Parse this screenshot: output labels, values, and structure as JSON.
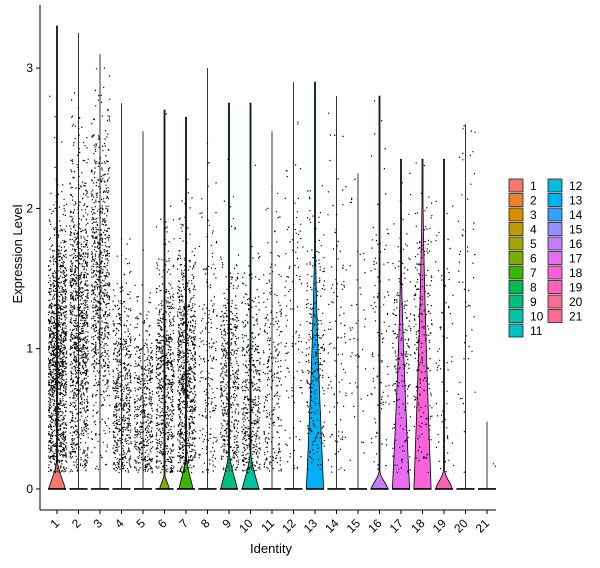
{
  "chart_data": {
    "type": "violin",
    "xlabel": "Identity",
    "ylabel": "Expression Level",
    "ylim": [
      -0.15,
      3.45
    ],
    "yticks": [
      0,
      1,
      2,
      3
    ],
    "grid": false,
    "legend_position": "right",
    "points_overlay": true,
    "categories": [
      "1",
      "2",
      "3",
      "4",
      "5",
      "6",
      "7",
      "8",
      "9",
      "10",
      "11",
      "12",
      "13",
      "14",
      "15",
      "16",
      "17",
      "18",
      "19",
      "20",
      "21"
    ],
    "colors": [
      "#F8766D",
      "#EA8331",
      "#D89000",
      "#C09B00",
      "#A3A500",
      "#7CAE00",
      "#39B600",
      "#00BB4E",
      "#00BF7D",
      "#00C1A3",
      "#00BFC4",
      "#00BAE0",
      "#00B0F6",
      "#35A2FF",
      "#9590FF",
      "#C77CFF",
      "#E76BF3",
      "#FA62DB",
      "#FF62BC",
      "#FF6C91",
      "#FF6C91"
    ],
    "series": [
      {
        "name": "1",
        "max": 3.3,
        "point_mean": 0.9,
        "point_sd": 0.5,
        "point_count": 1300,
        "violin_peak": 0.19,
        "violin_halfwidth": 0.38
      },
      {
        "name": "2",
        "max": 3.25,
        "point_mean": 1.15,
        "point_sd": 0.6,
        "point_count": 1100,
        "violin_peak": 0.0,
        "violin_halfwidth": 0.0
      },
      {
        "name": "3",
        "max": 3.1,
        "point_mean": 1.5,
        "point_sd": 0.55,
        "point_count": 800,
        "violin_peak": 0.0,
        "violin_halfwidth": 0.0
      },
      {
        "name": "4",
        "max": 2.75,
        "point_mean": 0.7,
        "point_sd": 0.4,
        "point_count": 550,
        "violin_peak": 0.0,
        "violin_halfwidth": 0.0
      },
      {
        "name": "5",
        "max": 2.55,
        "point_mean": 0.55,
        "point_sd": 0.35,
        "point_count": 450,
        "violin_peak": 0.0,
        "violin_halfwidth": 0.0
      },
      {
        "name": "6",
        "max": 2.7,
        "point_mean": 0.75,
        "point_sd": 0.45,
        "point_count": 650,
        "violin_peak": 0.1,
        "violin_halfwidth": 0.22
      },
      {
        "name": "7",
        "max": 2.65,
        "point_mean": 0.8,
        "point_sd": 0.45,
        "point_count": 850,
        "violin_peak": 0.22,
        "violin_halfwidth": 0.32
      },
      {
        "name": "8",
        "max": 3.0,
        "point_mean": 0.9,
        "point_sd": 0.6,
        "point_count": 200,
        "violin_peak": 0.0,
        "violin_halfwidth": 0.0
      },
      {
        "name": "9",
        "max": 2.75,
        "point_mean": 0.75,
        "point_sd": 0.45,
        "point_count": 500,
        "violin_peak": 0.25,
        "violin_halfwidth": 0.38
      },
      {
        "name": "10",
        "max": 2.75,
        "point_mean": 0.7,
        "point_sd": 0.45,
        "point_count": 450,
        "violin_peak": 0.24,
        "violin_halfwidth": 0.38
      },
      {
        "name": "11",
        "max": 2.55,
        "point_mean": 0.8,
        "point_sd": 0.5,
        "point_count": 250,
        "violin_peak": 0.0,
        "violin_halfwidth": 0.0
      },
      {
        "name": "12",
        "max": 2.9,
        "point_mean": 1.2,
        "point_sd": 0.7,
        "point_count": 110,
        "violin_peak": 0.0,
        "violin_halfwidth": 0.0
      },
      {
        "name": "13",
        "max": 2.9,
        "point_mean": 0.95,
        "point_sd": 0.5,
        "point_count": 280,
        "violin_peak": 1.7,
        "violin_halfwidth": 0.4
      },
      {
        "name": "14",
        "max": 2.8,
        "point_mean": 1.0,
        "point_sd": 0.65,
        "point_count": 110,
        "violin_peak": 0.0,
        "violin_halfwidth": 0.0
      },
      {
        "name": "15",
        "max": 2.25,
        "point_mean": 1.0,
        "point_sd": 0.6,
        "point_count": 50,
        "violin_peak": 0.0,
        "violin_halfwidth": 0.0
      },
      {
        "name": "16",
        "max": 2.8,
        "point_mean": 1.1,
        "point_sd": 0.6,
        "point_count": 110,
        "violin_peak": 0.12,
        "violin_halfwidth": 0.38
      },
      {
        "name": "17",
        "max": 2.35,
        "point_mean": 0.95,
        "point_sd": 0.5,
        "point_count": 200,
        "violin_peak": 1.55,
        "violin_halfwidth": 0.4
      },
      {
        "name": "18",
        "max": 2.35,
        "point_mean": 1.1,
        "point_sd": 0.5,
        "point_count": 240,
        "violin_peak": 2.05,
        "violin_halfwidth": 0.4
      },
      {
        "name": "19",
        "max": 2.35,
        "point_mean": 0.9,
        "point_sd": 0.6,
        "point_count": 70,
        "violin_peak": 0.13,
        "violin_halfwidth": 0.38
      },
      {
        "name": "20",
        "max": 2.6,
        "point_mean": 1.5,
        "point_sd": 0.65,
        "point_count": 55,
        "violin_peak": 0.0,
        "violin_halfwidth": 0.0
      },
      {
        "name": "21",
        "max": 0.48,
        "point_mean": 0.25,
        "point_sd": 0.1,
        "point_count": 2,
        "violin_peak": 0.0,
        "violin_halfwidth": 0.0
      }
    ]
  }
}
